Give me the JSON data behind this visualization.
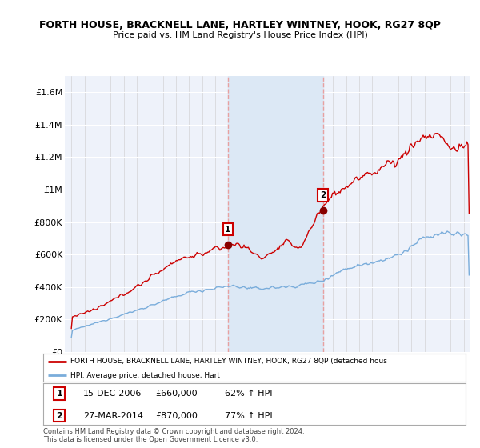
{
  "title": "FORTH HOUSE, BRACKNELL LANE, HARTLEY WINTNEY, HOOK, RG27 8QP",
  "subtitle": "Price paid vs. HM Land Registry's House Price Index (HPI)",
  "ylim": [
    0,
    1700000
  ],
  "yticks": [
    0,
    200000,
    400000,
    600000,
    800000,
    1000000,
    1200000,
    1400000,
    1600000
  ],
  "ytick_labels": [
    "£0",
    "£200K",
    "£400K",
    "£600K",
    "£800K",
    "£1M",
    "£1.2M",
    "£1.4M",
    "£1.6M"
  ],
  "red_line_color": "#cc0000",
  "blue_line_color": "#7aaddb",
  "vline_color": "#e8a0a0",
  "fill_color": "#dce8f5",
  "legend_label_red": "FORTH HOUSE, BRACKNELL LANE, HARTLEY WINTNEY, HOOK, RG27 8QP (detached hous",
  "legend_label_blue": "HPI: Average price, detached house, Hart",
  "sale1_date": "15-DEC-2006",
  "sale1_price": "£660,000",
  "sale1_hpi": "62% ↑ HPI",
  "sale1_year": 2006.96,
  "sale1_value": 660000,
  "sale2_date": "27-MAR-2014",
  "sale2_price": "£870,000",
  "sale2_hpi": "77% ↑ HPI",
  "sale2_year": 2014.23,
  "sale2_value": 870000,
  "footer": "Contains HM Land Registry data © Crown copyright and database right 2024.\nThis data is licensed under the Open Government Licence v3.0.",
  "background_color": "#ffffff",
  "plot_bg_color": "#eef2fa"
}
